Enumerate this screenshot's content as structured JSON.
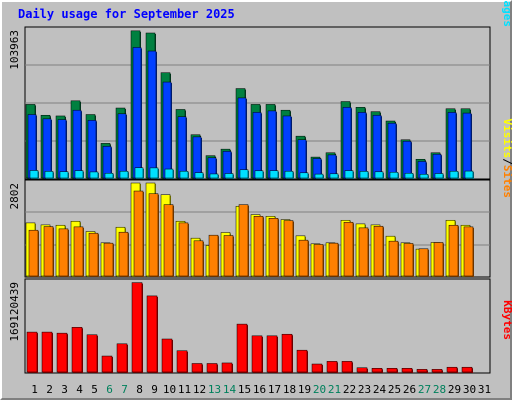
{
  "title": "Daily usage for September 2025",
  "colors": {
    "hits": "#008040",
    "files": "#0040ff",
    "pages": "#00e0ff",
    "visits": "#ffff00",
    "sites": "#ff8000",
    "kbytes": "#ff0000",
    "weekday": "#000000",
    "weekend": "#00805c",
    "background": "#c0c0c0",
    "title": "#0000ff"
  },
  "chart_data": [
    {
      "type": "bar",
      "title": "Daily usage for September 2025",
      "ylabel_parts": [
        "Pages",
        "/",
        "Files",
        "/",
        "Hits"
      ],
      "ymax": 103963,
      "ymax_label": "103963",
      "categories": [
        "1",
        "2",
        "3",
        "4",
        "5",
        "6",
        "7",
        "8",
        "9",
        "10",
        "11",
        "12",
        "13",
        "14",
        "15",
        "16",
        "17",
        "18",
        "19",
        "20",
        "21",
        "22",
        "23",
        "24",
        "25",
        "26",
        "27",
        "28",
        "29",
        "30",
        "31"
      ],
      "weekend_days": [
        "6",
        "7",
        "13",
        "14",
        "20",
        "21",
        "27",
        "28"
      ],
      "series": [
        {
          "name": "Hits",
          "values": [
            51000,
            43500,
            43000,
            53500,
            44000,
            24000,
            48500,
            102000,
            100500,
            73000,
            47500,
            30000,
            15500,
            20000,
            62000,
            51000,
            51000,
            47000,
            29000,
            14500,
            17500,
            53000,
            49000,
            46000,
            39500,
            26500,
            13000,
            17500,
            48000,
            48000,
            0
          ]
        },
        {
          "name": "Files",
          "values": [
            44000,
            41000,
            40500,
            47000,
            40000,
            22000,
            44500,
            90500,
            88000,
            66500,
            42500,
            28500,
            14000,
            18500,
            55500,
            45500,
            46500,
            43000,
            26500,
            13500,
            16000,
            49000,
            45500,
            43500,
            38000,
            25500,
            11500,
            16500,
            45500,
            45000,
            0
          ]
        },
        {
          "name": "Pages",
          "values": [
            5200,
            4600,
            4400,
            5100,
            4200,
            3300,
            4700,
            7100,
            7000,
            6200,
            4700,
            3700,
            2800,
            3100,
            5700,
            5000,
            5100,
            4700,
            3600,
            2700,
            2900,
            5100,
            4600,
            4300,
            4000,
            3300,
            2600,
            3100,
            4700,
            4800,
            0
          ]
        }
      ]
    },
    {
      "type": "bar",
      "ylabel_parts": [
        "Sites",
        "/",
        "Visits"
      ],
      "ymax": 2802,
      "ymax_label": "2802",
      "series": [
        {
          "name": "Visits",
          "values": [
            1600,
            1540,
            1530,
            1650,
            1340,
            1000,
            1470,
            2802,
            2802,
            2450,
            1650,
            1140,
            920,
            1310,
            2100,
            1850,
            1800,
            1700,
            1210,
            970,
            1000,
            1680,
            1570,
            1540,
            1200,
            1000,
            810,
            1010,
            1680,
            1530,
            0
          ]
        },
        {
          "name": "Sites",
          "values": [
            1380,
            1490,
            1420,
            1480,
            1290,
            990,
            1320,
            2560,
            2480,
            2150,
            1600,
            1060,
            1230,
            1220,
            2150,
            1800,
            1740,
            1670,
            1080,
            950,
            990,
            1620,
            1450,
            1500,
            1050,
            980,
            820,
            1010,
            1530,
            1480,
            0
          ]
        }
      ]
    },
    {
      "type": "bar",
      "ylabel_parts": [
        "KBytes"
      ],
      "ymax": 169120439,
      "ymax_label": "169120439",
      "series": [
        {
          "name": "KBytes",
          "values": [
            75000000,
            75000000,
            73000000,
            84000000,
            70000000,
            30000000,
            53000000,
            168000000,
            143000000,
            62000000,
            40000000,
            16000000,
            16000000,
            17000000,
            90000000,
            68000000,
            68000000,
            71000000,
            41000000,
            15000000,
            20000000,
            20000000,
            8000000,
            7000000,
            7000000,
            7000000,
            5000000,
            5000000,
            9000000,
            9000000,
            0
          ]
        }
      ]
    }
  ]
}
